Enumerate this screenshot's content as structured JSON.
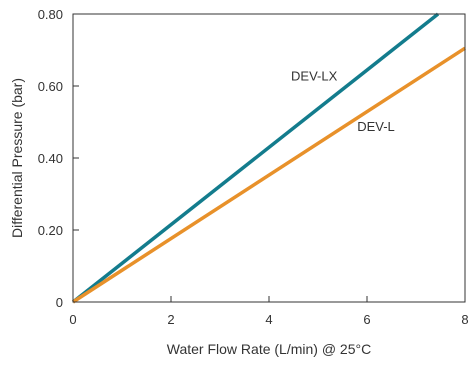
{
  "chart_data": {
    "type": "line",
    "xlabel": "Water Flow Rate (L/min) @ 25°C",
    "ylabel": "Differential Pressure (bar)",
    "xlim": [
      0,
      8
    ],
    "ylim": [
      0,
      0.8
    ],
    "x_ticks": [
      {
        "value": 0,
        "label": "0"
      },
      {
        "value": 2,
        "label": "2"
      },
      {
        "value": 4,
        "label": "4"
      },
      {
        "value": 6,
        "label": "6"
      },
      {
        "value": 8,
        "label": "8"
      }
    ],
    "y_ticks": [
      {
        "value": 0,
        "label": "0"
      },
      {
        "value": 0.2,
        "label": "0.20"
      },
      {
        "value": 0.4,
        "label": "0.40"
      },
      {
        "value": 0.6,
        "label": "0.60"
      },
      {
        "value": 0.8,
        "label": "0.80"
      }
    ],
    "grid": false,
    "legend": "none",
    "series": [
      {
        "name": "DEV-LX",
        "color": "#137C8D",
        "x": [
          0,
          7.45
        ],
        "y": [
          0,
          0.8
        ],
        "label_at": [
          4.45,
          0.615
        ]
      },
      {
        "name": "DEV-L",
        "color": "#E8912A",
        "x": [
          0,
          8
        ],
        "y": [
          0,
          0.705
        ],
        "label_at": [
          5.8,
          0.475
        ]
      }
    ]
  }
}
